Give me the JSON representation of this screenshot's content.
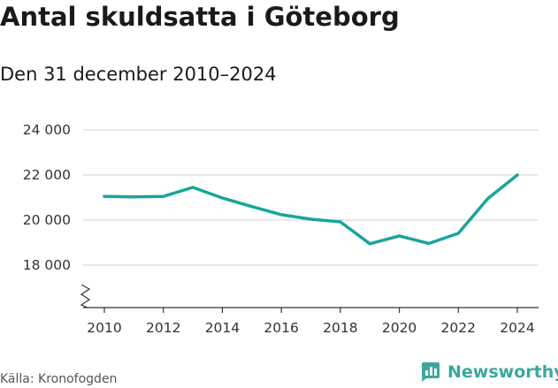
{
  "header": {
    "title": "Antal skuldsatta i Göteborg",
    "subtitle": "Den 31 december 2010–2024"
  },
  "footer": {
    "source": "Källa: Kronofogden",
    "brand": "Newsworthy"
  },
  "colors": {
    "line": "#1aa59a",
    "grid": "#d0d0d0",
    "axis": "#333333",
    "brand": "#3aa89c"
  },
  "chart_data": {
    "type": "line",
    "title": "Antal skuldsatta i Göteborg",
    "subtitle": "Den 31 december 2010–2024",
    "xlabel": "",
    "ylabel": "",
    "x": [
      2010,
      2011,
      2012,
      2013,
      2014,
      2015,
      2016,
      2017,
      2018,
      2019,
      2020,
      2021,
      2022,
      2023,
      2024
    ],
    "series": [
      {
        "name": "Antal skuldsatta",
        "values": [
          21050,
          21030,
          21050,
          21450,
          20980,
          20600,
          20240,
          20040,
          19920,
          18950,
          19300,
          18960,
          19410,
          20950,
          22000
        ]
      }
    ],
    "ylim": [
      16000,
      24000
    ],
    "yticks": [
      18000,
      20000,
      22000,
      24000
    ],
    "ytick_labels": [
      "18 000",
      "20 000",
      "22 000",
      "24 000"
    ],
    "xticks": [
      2010,
      2012,
      2014,
      2016,
      2018,
      2020,
      2022,
      2024
    ],
    "xtick_labels": [
      "2010",
      "2012",
      "2014",
      "2016",
      "2018",
      "2020",
      "2022",
      "2024"
    ],
    "grid": true,
    "axis_break": true
  }
}
